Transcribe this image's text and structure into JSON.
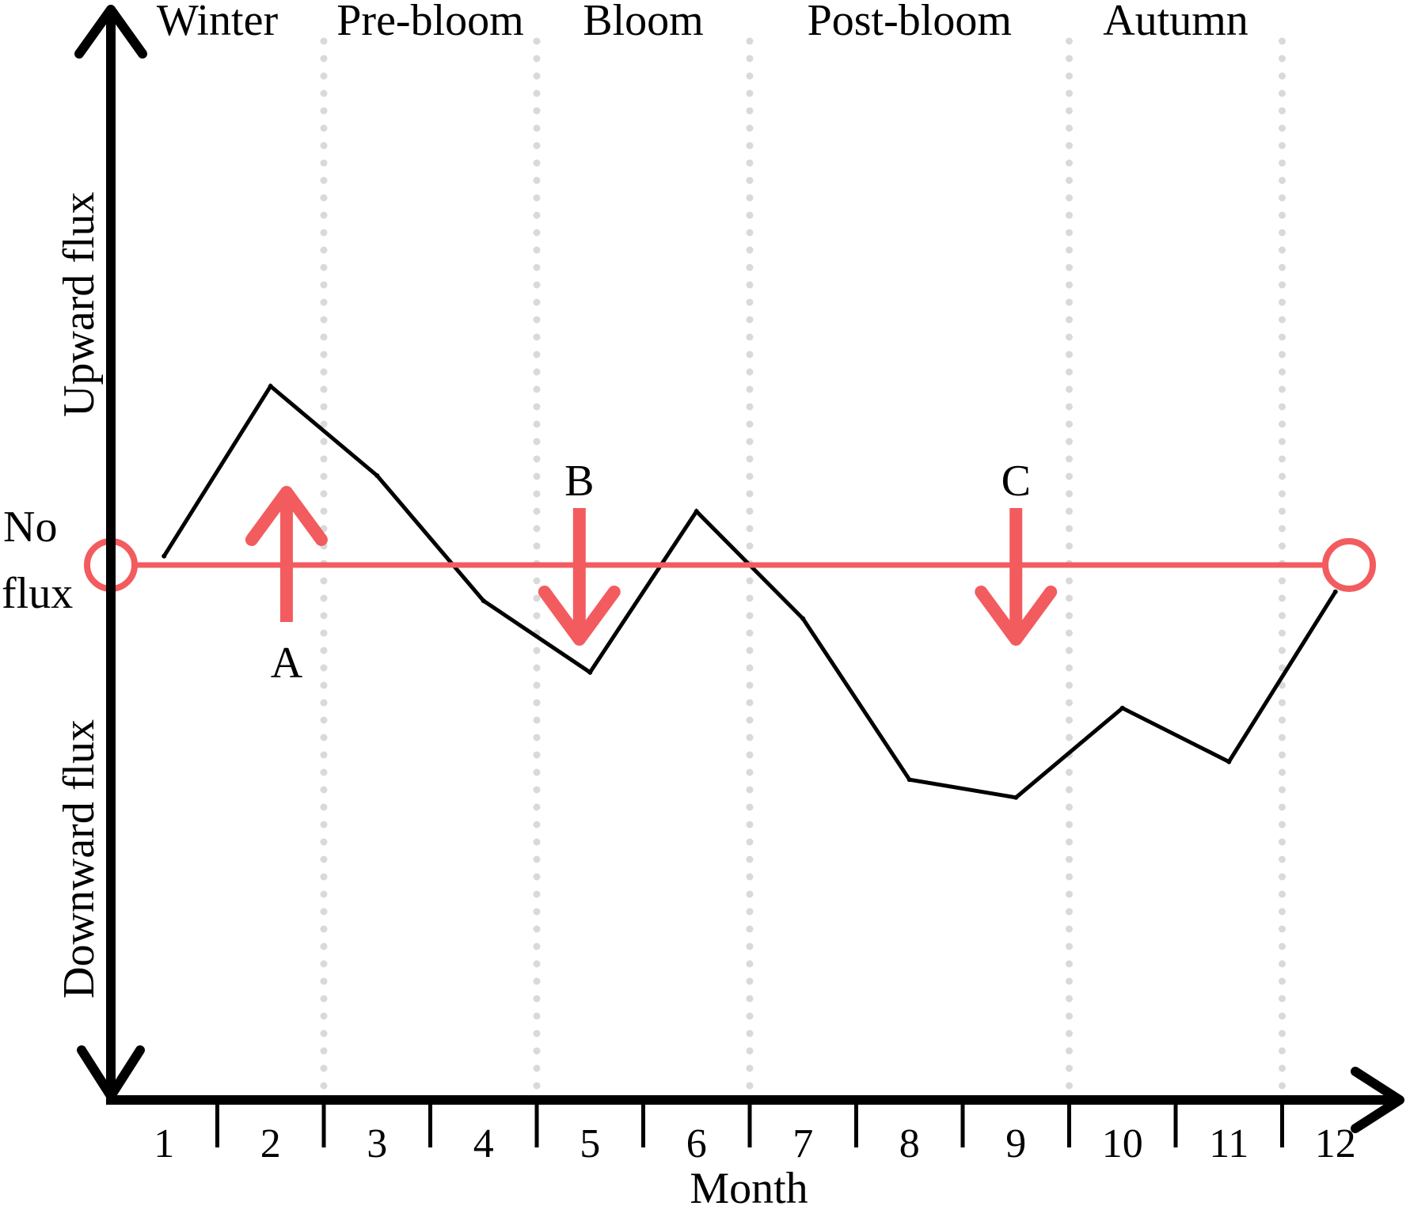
{
  "chart_data": {
    "type": "line",
    "xlabel": "Month",
    "ylabel_upper": "Upward flux",
    "ylabel_lower": "Downward flux",
    "zero_label_line1": "No",
    "zero_label_line2": "flux",
    "x": [
      1,
      2,
      3,
      4,
      5,
      6,
      7,
      8,
      9,
      10,
      11,
      12
    ],
    "tick_labels": [
      "1",
      "2",
      "3",
      "4",
      "5",
      "6",
      "7",
      "8",
      "9",
      "10",
      "11",
      "12"
    ],
    "xlim": [
      0.5,
      12.5
    ],
    "ylim": [
      -3,
      3
    ],
    "series": [
      {
        "x": [
          1,
          2,
          3,
          4,
          5,
          6,
          7,
          8,
          9,
          10,
          11,
          12
        ],
        "values": [
          0.05,
          1.0,
          0.5,
          -0.2,
          -0.6,
          0.3,
          -0.3,
          -1.2,
          -1.3,
          -0.8,
          -1.1,
          -0.15
        ]
      }
    ],
    "seasons": [
      {
        "label": "Winter",
        "from": 0.5,
        "to": 2.5
      },
      {
        "label": "Pre-bloom",
        "from": 2.5,
        "to": 4.5
      },
      {
        "label": "Bloom",
        "from": 4.5,
        "to": 6.5
      },
      {
        "label": "Post-bloom",
        "from": 6.5,
        "to": 9.5
      },
      {
        "label": "Autumn",
        "from": 9.5,
        "to": 11.5
      }
    ],
    "season_boundaries": [
      2.5,
      4.5,
      6.5,
      9.5,
      11.5
    ],
    "annotations": [
      {
        "label": "A",
        "x": 2.15,
        "direction": "up"
      },
      {
        "label": "B",
        "x": 4.9,
        "direction": "down"
      },
      {
        "label": "C",
        "x": 9.0,
        "direction": "down"
      }
    ],
    "colors": {
      "series": "#000000",
      "zero_line": "#f25c5f",
      "grid": "#d9d9d9",
      "axis": "#000000"
    }
  }
}
